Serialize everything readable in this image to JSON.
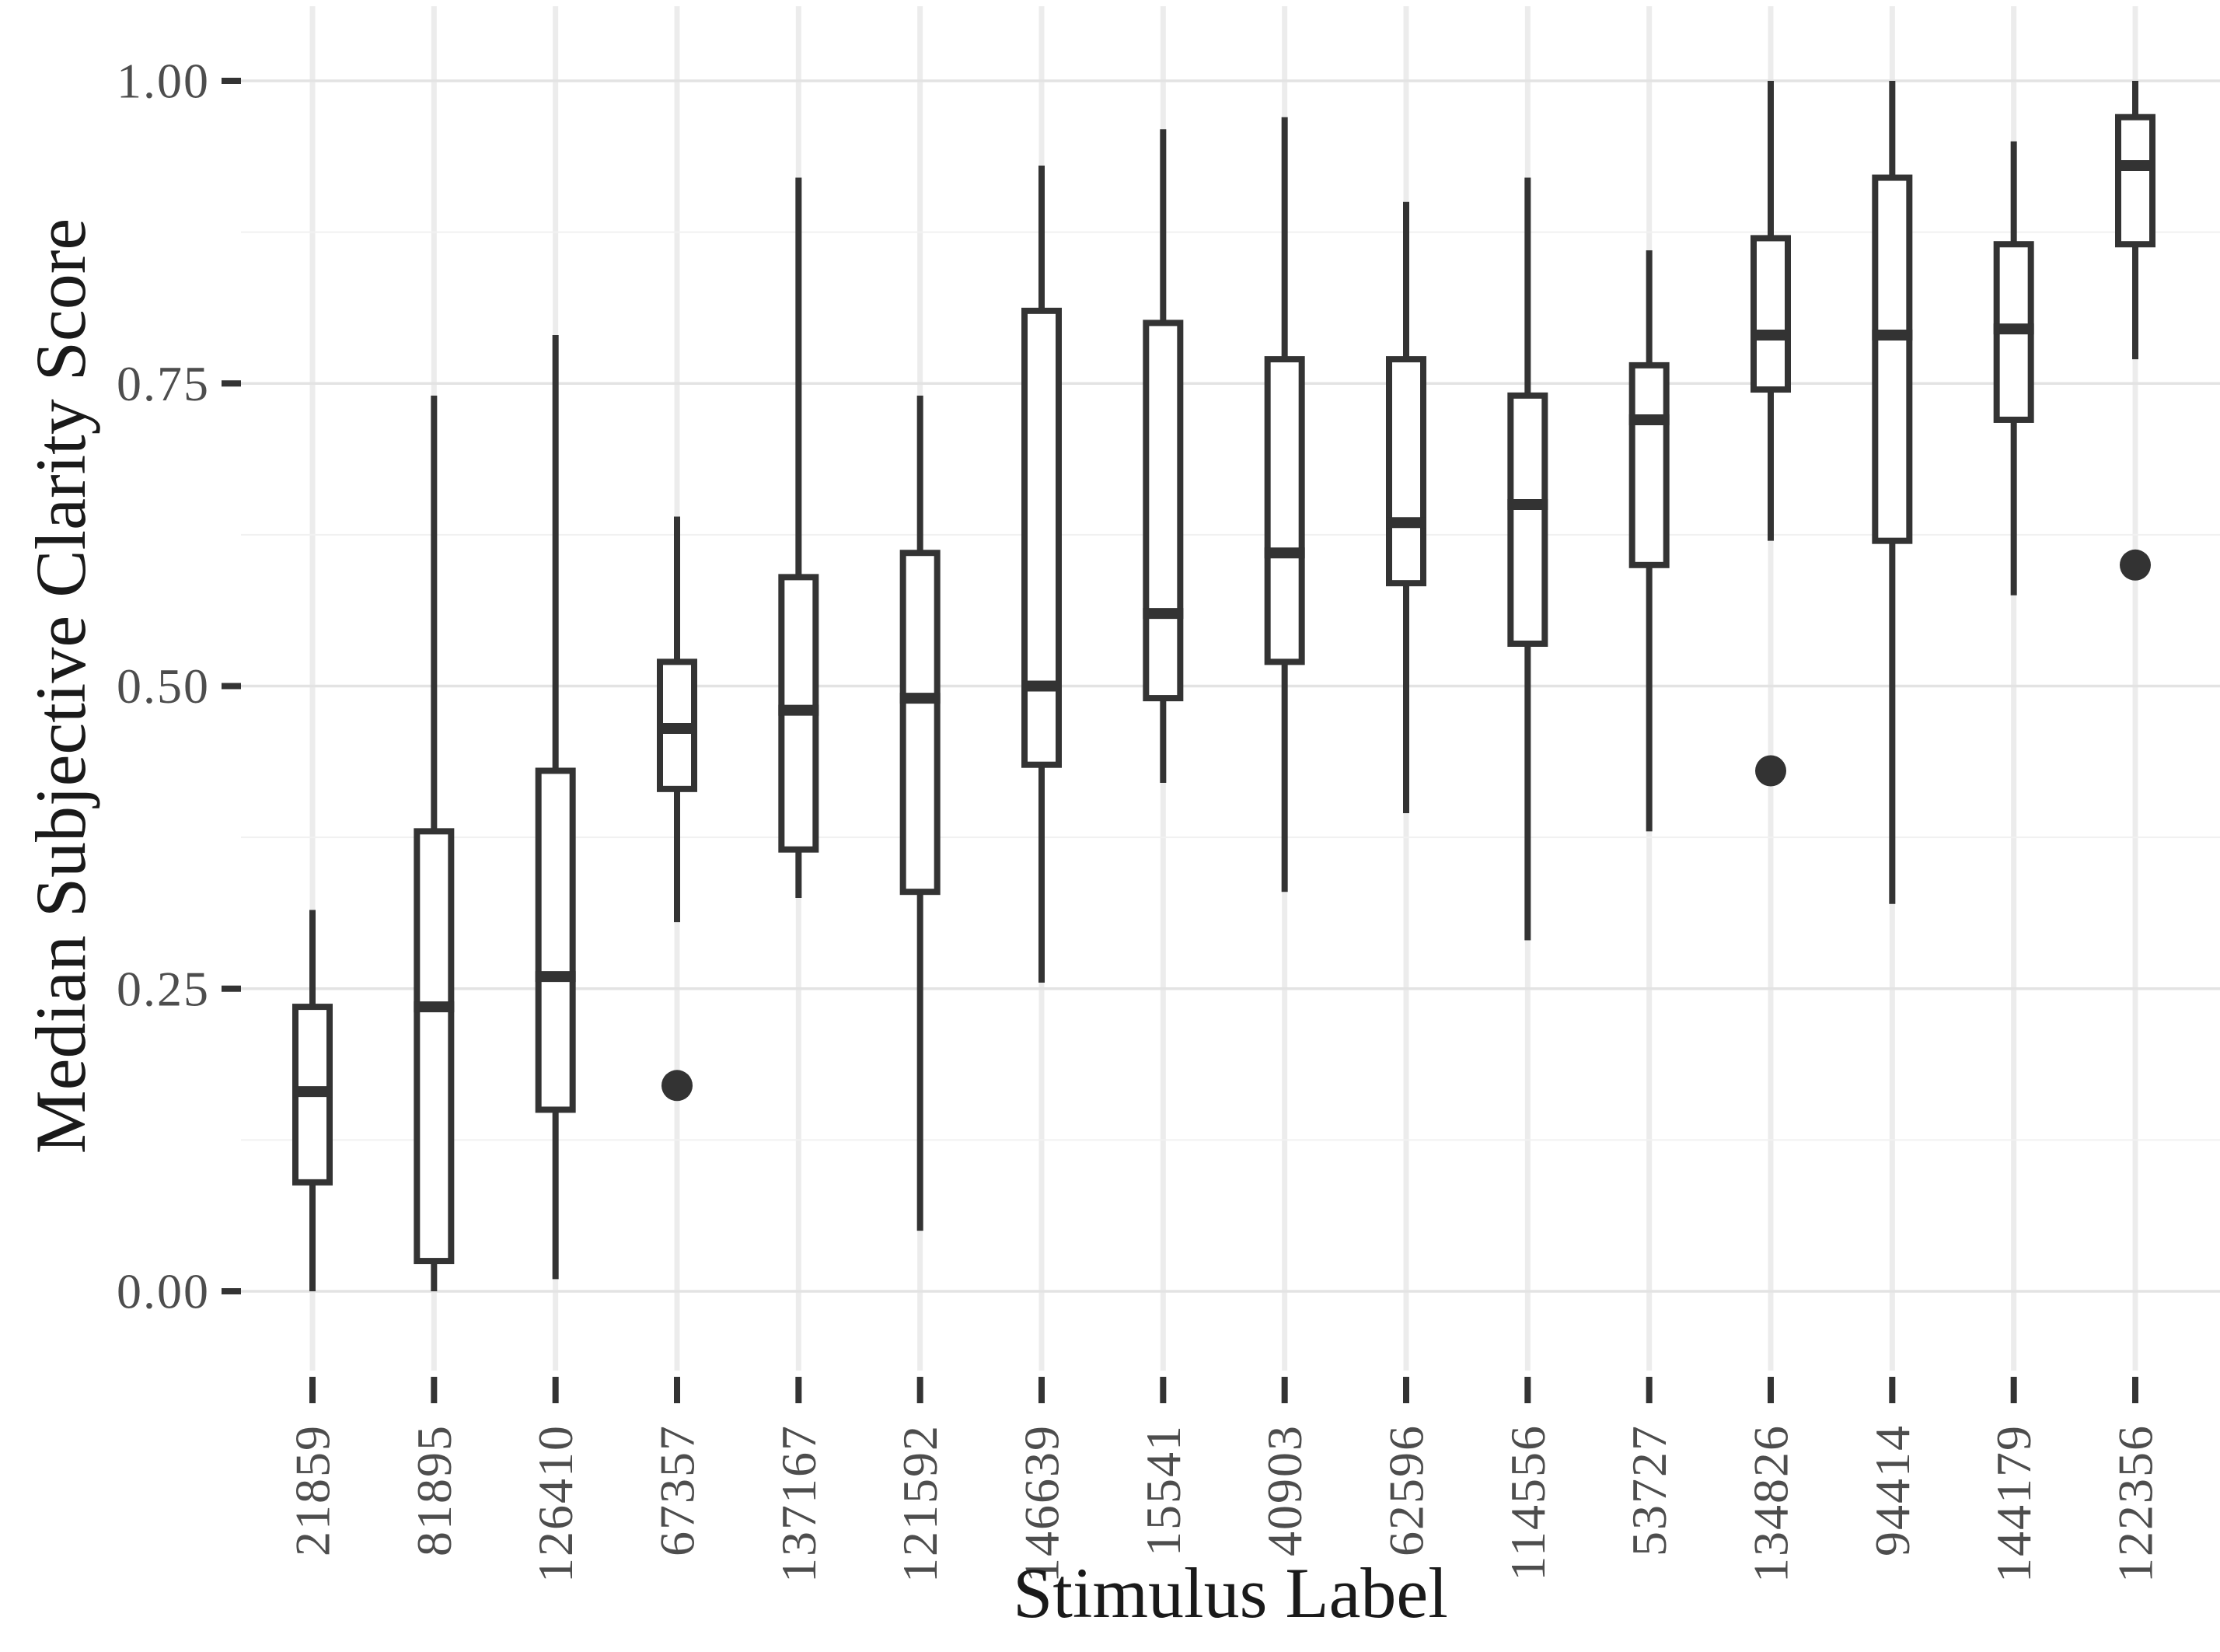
{
  "chart_data": {
    "type": "boxplot",
    "title": "",
    "xlabel": "Stimulus Label",
    "ylabel": "Median Subjective Clarity Score",
    "ylim": [
      0,
      1
    ],
    "y_major_ticks": [
      0,
      0.25,
      0.5,
      0.75,
      1.0
    ],
    "y_tick_labels": [
      "0.00",
      "0.25",
      "0.50",
      "0.75",
      "1.00"
    ],
    "y_minor_ticks": [
      0.125,
      0.375,
      0.625,
      0.875
    ],
    "grid": true,
    "legend_position": "none",
    "categories": [
      "21859",
      "81895",
      "126410",
      "67357",
      "137167",
      "121592",
      "146639",
      "15541",
      "40903",
      "62596",
      "114556",
      "53727",
      "134826",
      "94414",
      "144179",
      "122356"
    ],
    "boxes": [
      {
        "label": "21859",
        "whisker_low": 0.0,
        "q1": 0.09,
        "median": 0.165,
        "q3": 0.235,
        "whisker_high": 0.315,
        "outliers": []
      },
      {
        "label": "81895",
        "whisker_low": 0.0,
        "q1": 0.025,
        "median": 0.235,
        "q3": 0.38,
        "whisker_high": 0.74,
        "outliers": []
      },
      {
        "label": "126410",
        "whisker_low": 0.01,
        "q1": 0.15,
        "median": 0.26,
        "q3": 0.43,
        "whisker_high": 0.79,
        "outliers": []
      },
      {
        "label": "67357",
        "whisker_low": 0.305,
        "q1": 0.415,
        "median": 0.465,
        "q3": 0.52,
        "whisker_high": 0.64,
        "outliers": [
          0.17
        ]
      },
      {
        "label": "137167",
        "whisker_low": 0.325,
        "q1": 0.365,
        "median": 0.48,
        "q3": 0.59,
        "whisker_high": 0.92,
        "outliers": []
      },
      {
        "label": "121592",
        "whisker_low": 0.05,
        "q1": 0.33,
        "median": 0.49,
        "q3": 0.61,
        "whisker_high": 0.74,
        "outliers": []
      },
      {
        "label": "146639",
        "whisker_low": 0.255,
        "q1": 0.435,
        "median": 0.5,
        "q3": 0.81,
        "whisker_high": 0.93,
        "outliers": []
      },
      {
        "label": "15541",
        "whisker_low": 0.42,
        "q1": 0.49,
        "median": 0.56,
        "q3": 0.8,
        "whisker_high": 0.96,
        "outliers": []
      },
      {
        "label": "40903",
        "whisker_low": 0.33,
        "q1": 0.52,
        "median": 0.61,
        "q3": 0.77,
        "whisker_high": 0.97,
        "outliers": []
      },
      {
        "label": "62596",
        "whisker_low": 0.395,
        "q1": 0.585,
        "median": 0.635,
        "q3": 0.77,
        "whisker_high": 0.9,
        "outliers": []
      },
      {
        "label": "114556",
        "whisker_low": 0.29,
        "q1": 0.535,
        "median": 0.65,
        "q3": 0.74,
        "whisker_high": 0.92,
        "outliers": []
      },
      {
        "label": "53727",
        "whisker_low": 0.38,
        "q1": 0.6,
        "median": 0.72,
        "q3": 0.765,
        "whisker_high": 0.86,
        "outliers": []
      },
      {
        "label": "134826",
        "whisker_low": 0.62,
        "q1": 0.745,
        "median": 0.79,
        "q3": 0.87,
        "whisker_high": 1.0,
        "outliers": [
          0.43
        ]
      },
      {
        "label": "94414",
        "whisker_low": 0.32,
        "q1": 0.62,
        "median": 0.79,
        "q3": 0.92,
        "whisker_high": 1.0,
        "outliers": []
      },
      {
        "label": "144179",
        "whisker_low": 0.575,
        "q1": 0.72,
        "median": 0.795,
        "q3": 0.865,
        "whisker_high": 0.95,
        "outliers": []
      },
      {
        "label": "122356",
        "whisker_low": 0.77,
        "q1": 0.865,
        "median": 0.93,
        "q3": 0.97,
        "whisker_high": 1.0,
        "outliers": [
          0.6
        ]
      }
    ],
    "colors": {
      "background": "#ffffff",
      "box_stroke": "#333333",
      "box_fill": "#ffffff",
      "outlier": "#333333",
      "grid_major": "#e3e3e3",
      "grid_minor": "#f1f1f1",
      "grid_vertical": "#ececec",
      "tick": "#333333",
      "tick_label": "#4d4d4d",
      "axis_title": "#1a1a1a"
    }
  }
}
